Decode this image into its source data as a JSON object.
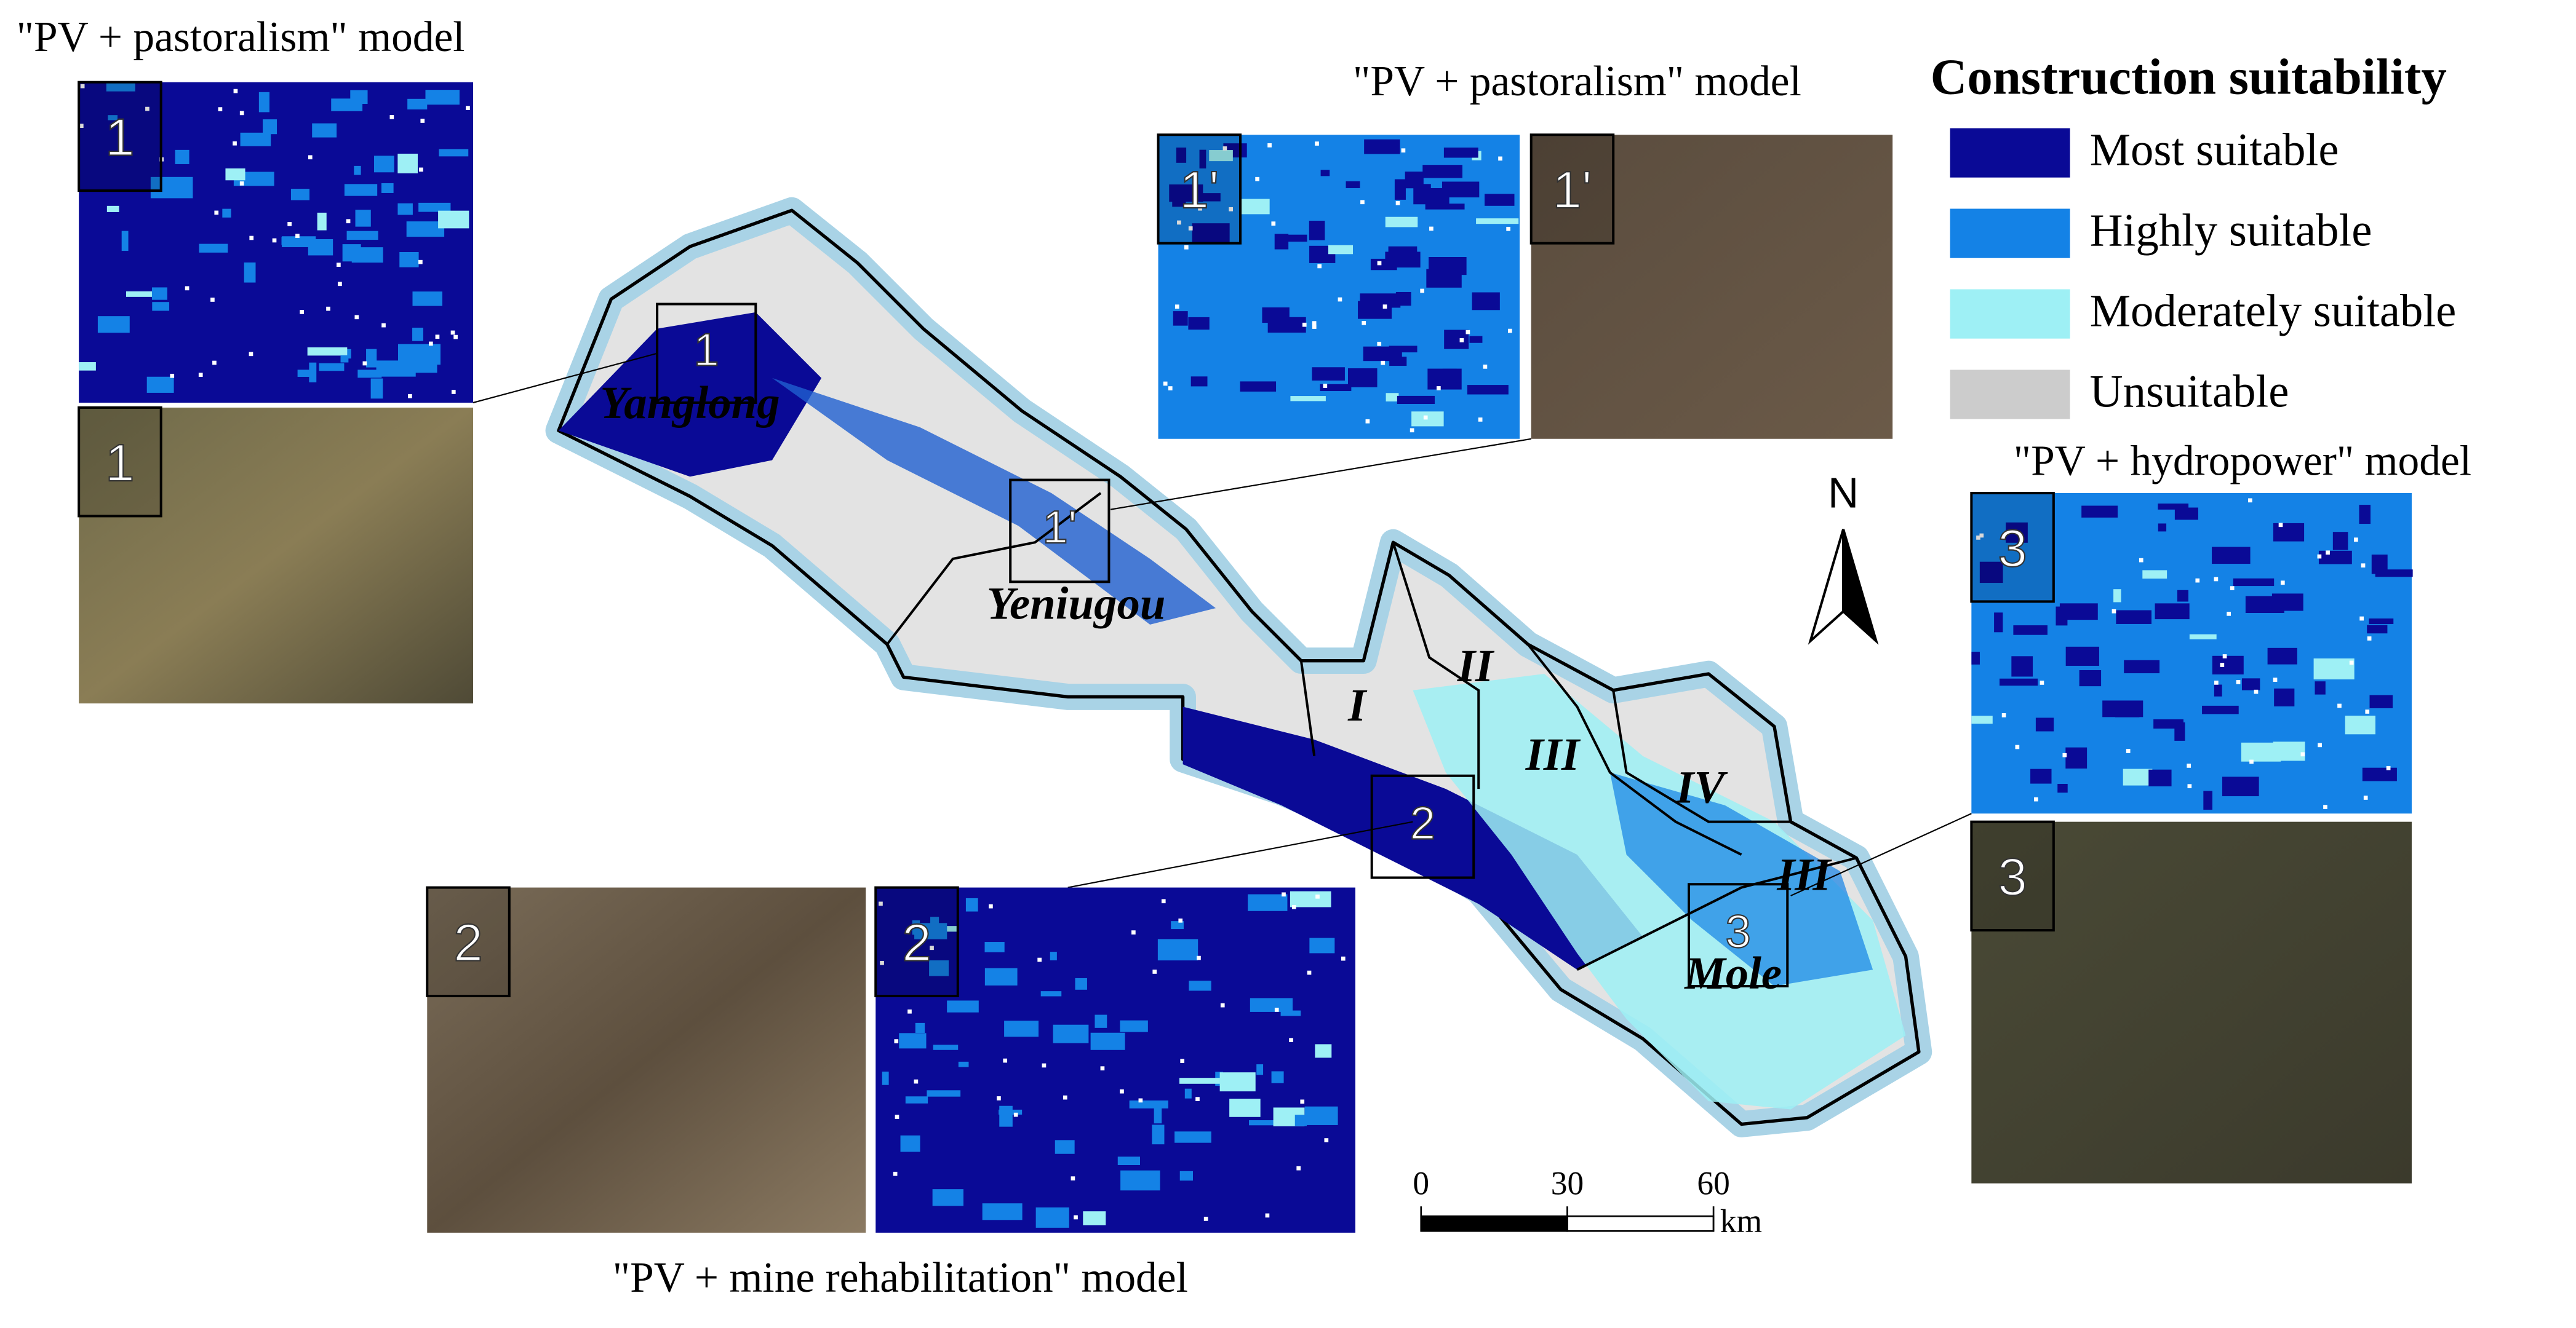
{
  "insets": [
    {
      "title": "\"PV + pastoralism\" model",
      "tiles": [
        "1",
        "1"
      ]
    },
    {
      "title": "\"PV + pastoralism\" model",
      "tiles": [
        "1'",
        "1'"
      ]
    },
    {
      "title": "\"PV + mine rehabilitation\" model",
      "tiles": [
        "2",
        "2"
      ]
    },
    {
      "title": "\"PV + hydropower\" model",
      "tiles": [
        "3",
        "3"
      ]
    }
  ],
  "legend": {
    "title": "Construction suitability",
    "items": [
      {
        "label": "Most suitable",
        "color": "#0a0a96"
      },
      {
        "label": "Highly suitable",
        "color": "#1482e6"
      },
      {
        "label": "Moderately suitable",
        "color": "#9ef0f5"
      },
      {
        "label": "Unsuitable",
        "color": "#cccccc"
      }
    ]
  },
  "map": {
    "towns": [
      "Yanglong",
      "Yeniugou",
      "Mole"
    ],
    "zones": [
      "I",
      "II",
      "III",
      "IV",
      "III"
    ],
    "boxes": [
      "1",
      "1'",
      "2",
      "3"
    ]
  },
  "north": "N",
  "scale": {
    "ticks": [
      0,
      30,
      60
    ],
    "unit": "km"
  }
}
